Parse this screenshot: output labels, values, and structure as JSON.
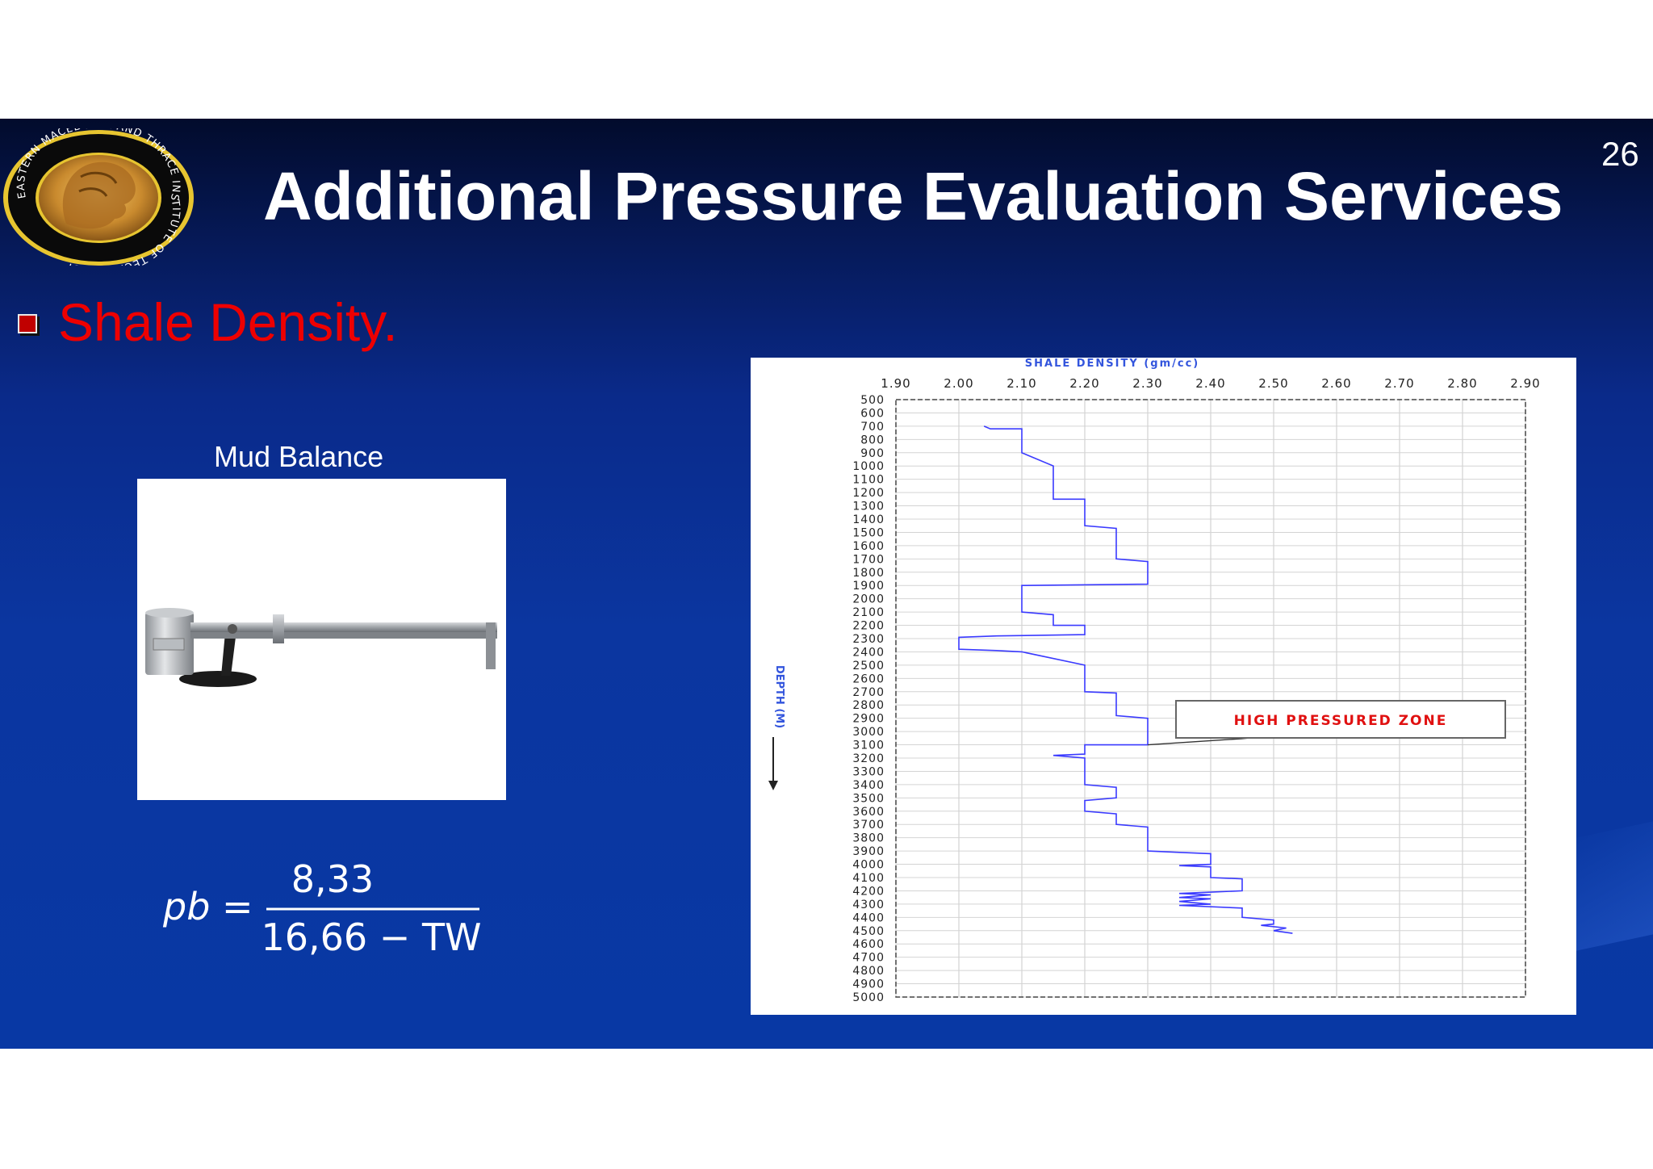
{
  "slide": {
    "page_number": "26",
    "title": "Additional Pressure Evaluation Services",
    "subtitle": "Shale Density.",
    "logo_icon": "eastern-macedonia-thrace-institute-seal",
    "logo_text": "EASTERN MACEDONIA AND THRACE INSTITUTE OF TECHNOLOGY"
  },
  "mud_balance": {
    "label": "Mud Balance",
    "photo_icon": "mud-balance-instrument"
  },
  "formula": {
    "lhs": "pb =",
    "numerator": "8,33",
    "denominator": "16,66 − TW"
  },
  "chart_data": {
    "type": "line",
    "title": "SHALE DENSITY (gm/cc)",
    "xlabel": "SHALE DENSITY (gm/cc)",
    "ylabel": "DEPTH (M)",
    "x_ticks": [
      "1.90",
      "2.00",
      "2.10",
      "2.20",
      "2.30",
      "2.40",
      "2.50",
      "2.60",
      "2.70",
      "2.80",
      "2.90"
    ],
    "y_ticks": [
      "500",
      "600",
      "700",
      "800",
      "900",
      "1000",
      "1100",
      "1200",
      "1300",
      "1400",
      "1500",
      "1600",
      "1700",
      "1800",
      "1900",
      "2000",
      "2100",
      "2200",
      "2300",
      "2400",
      "2500",
      "2600",
      "2700",
      "2800",
      "2900",
      "3000",
      "3100",
      "3200",
      "3300",
      "3400",
      "3500",
      "3600",
      "3700",
      "3800",
      "3900",
      "4000",
      "4100",
      "4200",
      "4300",
      "4400",
      "4500",
      "4600",
      "4700",
      "4800",
      "4900",
      "5000"
    ],
    "xlim": [
      1.9,
      2.9
    ],
    "ylim": [
      500,
      5000
    ],
    "y_inverted": true,
    "grid": true,
    "series": [
      {
        "color": "#3a3aff",
        "points": [
          [
            2.04,
            700
          ],
          [
            2.05,
            720
          ],
          [
            2.1,
            720
          ],
          [
            2.1,
            900
          ],
          [
            2.15,
            1000
          ],
          [
            2.15,
            1100
          ],
          [
            2.15,
            1250
          ],
          [
            2.2,
            1250
          ],
          [
            2.2,
            1300
          ],
          [
            2.2,
            1450
          ],
          [
            2.25,
            1470
          ],
          [
            2.25,
            1700
          ],
          [
            2.3,
            1720
          ],
          [
            2.3,
            1890
          ],
          [
            2.1,
            1900
          ],
          [
            2.1,
            2100
          ],
          [
            2.15,
            2120
          ],
          [
            2.15,
            2200
          ],
          [
            2.2,
            2200
          ],
          [
            2.2,
            2270
          ],
          [
            2.06,
            2280
          ],
          [
            2.0,
            2290
          ],
          [
            2.0,
            2380
          ],
          [
            2.06,
            2390
          ],
          [
            2.1,
            2400
          ],
          [
            2.2,
            2500
          ],
          [
            2.2,
            2700
          ],
          [
            2.25,
            2710
          ],
          [
            2.25,
            2880
          ],
          [
            2.3,
            2900
          ],
          [
            2.3,
            3100
          ],
          [
            2.2,
            3100
          ],
          [
            2.2,
            3170
          ],
          [
            2.15,
            3180
          ],
          [
            2.2,
            3200
          ],
          [
            2.2,
            3400
          ],
          [
            2.25,
            3420
          ],
          [
            2.25,
            3500
          ],
          [
            2.2,
            3520
          ],
          [
            2.2,
            3600
          ],
          [
            2.25,
            3620
          ],
          [
            2.25,
            3700
          ],
          [
            2.3,
            3720
          ],
          [
            2.3,
            3900
          ],
          [
            2.35,
            3910
          ],
          [
            2.4,
            3920
          ],
          [
            2.4,
            4000
          ],
          [
            2.35,
            4010
          ],
          [
            2.4,
            4020
          ],
          [
            2.4,
            4100
          ],
          [
            2.45,
            4110
          ],
          [
            2.45,
            4200
          ],
          [
            2.4,
            4210
          ],
          [
            2.35,
            4220
          ],
          [
            2.4,
            4230
          ],
          [
            2.35,
            4250
          ],
          [
            2.4,
            4260
          ],
          [
            2.35,
            4280
          ],
          [
            2.4,
            4300
          ],
          [
            2.35,
            4310
          ],
          [
            2.45,
            4330
          ],
          [
            2.45,
            4400
          ],
          [
            2.5,
            4420
          ],
          [
            2.5,
            4450
          ],
          [
            2.48,
            4460
          ],
          [
            2.52,
            4480
          ],
          [
            2.5,
            4500
          ],
          [
            2.53,
            4520
          ]
        ]
      }
    ],
    "annotation": "HIGH PRESSURED ZONE"
  }
}
